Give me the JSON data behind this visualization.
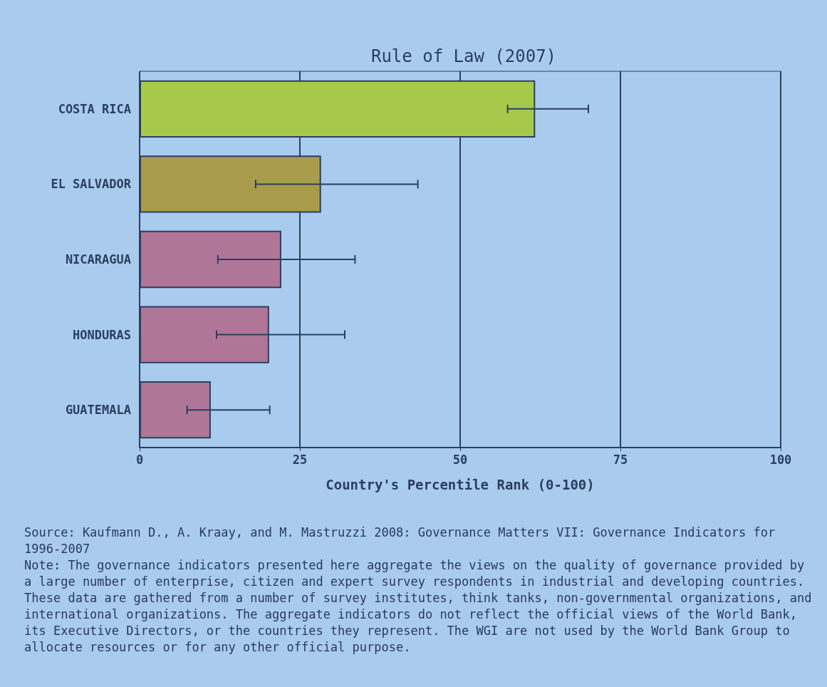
{
  "chart_data": {
    "type": "bar",
    "orientation": "horizontal",
    "title": "Rule of Law (2007)",
    "xlabel": "Country's Percentile Rank (0-100)",
    "categories": [
      "COSTA RICA",
      "EL SALVADOR",
      "NICARAGUA",
      "HONDURAS",
      "GUATEMALA"
    ],
    "values": [
      61.7,
      28.3,
      22.1,
      20.2,
      11.1
    ],
    "colors": [
      "#a6c94c",
      "#a89c4a",
      "#b07698",
      "#b07698",
      "#b07698"
    ],
    "errors": [
      [
        57.4,
        70
      ],
      [
        18.1,
        43.4
      ],
      [
        12.2,
        33.6
      ],
      [
        12,
        32
      ],
      [
        7.4,
        20.3
      ]
    ],
    "xlim": [
      0,
      100
    ],
    "xticks": [
      0,
      25,
      50,
      75,
      100
    ],
    "grid": "x",
    "annotations": [
      "Source: Kaufmann D., A. Kraay, and M. Mastruzzi 2008: Governance Matters VII: Governance Indicators for 1996-2007",
      "Note: The governance indicators presented here aggregate the views on the quality of governance provided by a large number of enterprise, citizen and expert survey respondents in industrial and developing countries. These data are gathered from a number of survey institutes, think tanks, non-governmental organizations, and international organizations. The aggregate indicators do not reflect the official views of the World Bank, its Executive Directors, or the countries they represent. The WGI are not used by the World Bank Group to allocate resources or for any other official purpose."
    ]
  }
}
